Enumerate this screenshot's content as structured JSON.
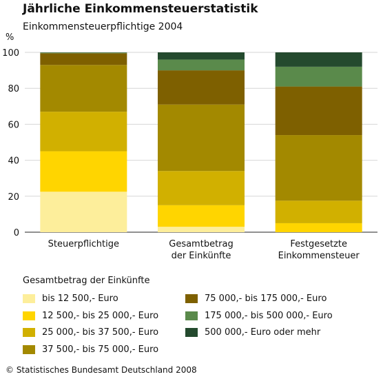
{
  "chart_data": {
    "type": "bar",
    "stacked": true,
    "title": "Jährliche Einkommensteuerstatistik",
    "subtitle": "Einkommensteuerpflichtige 2004",
    "ylabel": "%",
    "ylim": [
      0,
      100
    ],
    "yticks": [
      0,
      20,
      40,
      60,
      80,
      100
    ],
    "grid": true,
    "categories": [
      [
        "Steuerpflichtige"
      ],
      [
        "Gesamtbetrag",
        "der Einkünfte"
      ],
      [
        "Festgesetzte",
        "Einkommensteuer"
      ]
    ],
    "legend_title": "Gesamtbetrag der Einkünfte",
    "series": [
      {
        "name": "bis 12 500,- Euro",
        "color": "#FDEE9B",
        "values": [
          22.5,
          3.0,
          0.0
        ]
      },
      {
        "name": "12 500,- bis 25 000,- Euro",
        "color": "#FFD500",
        "values": [
          22.5,
          12.0,
          5.0
        ]
      },
      {
        "name": "25 000,- bis 37 500,- Euro",
        "color": "#D1B000",
        "values": [
          22.0,
          19.0,
          12.5
        ]
      },
      {
        "name": "37 500,- bis 75 000,- Euro",
        "color": "#A38900",
        "values": [
          26.0,
          37.0,
          36.5
        ]
      },
      {
        "name": "75 000,- bis 175 000,- Euro",
        "color": "#7E6000",
        "values": [
          6.5,
          19.0,
          27.0
        ]
      },
      {
        "name": "175 000,- bis 500 000,- Euro",
        "color": "#5A8A4B",
        "values": [
          0.4,
          6.0,
          11.0
        ]
      },
      {
        "name": "500 000,- Euro oder mehr",
        "color": "#244A2E",
        "values": [
          0.1,
          4.0,
          8.0
        ]
      }
    ]
  },
  "footer": "© Statistisches Bundesamt Deutschland 2008"
}
